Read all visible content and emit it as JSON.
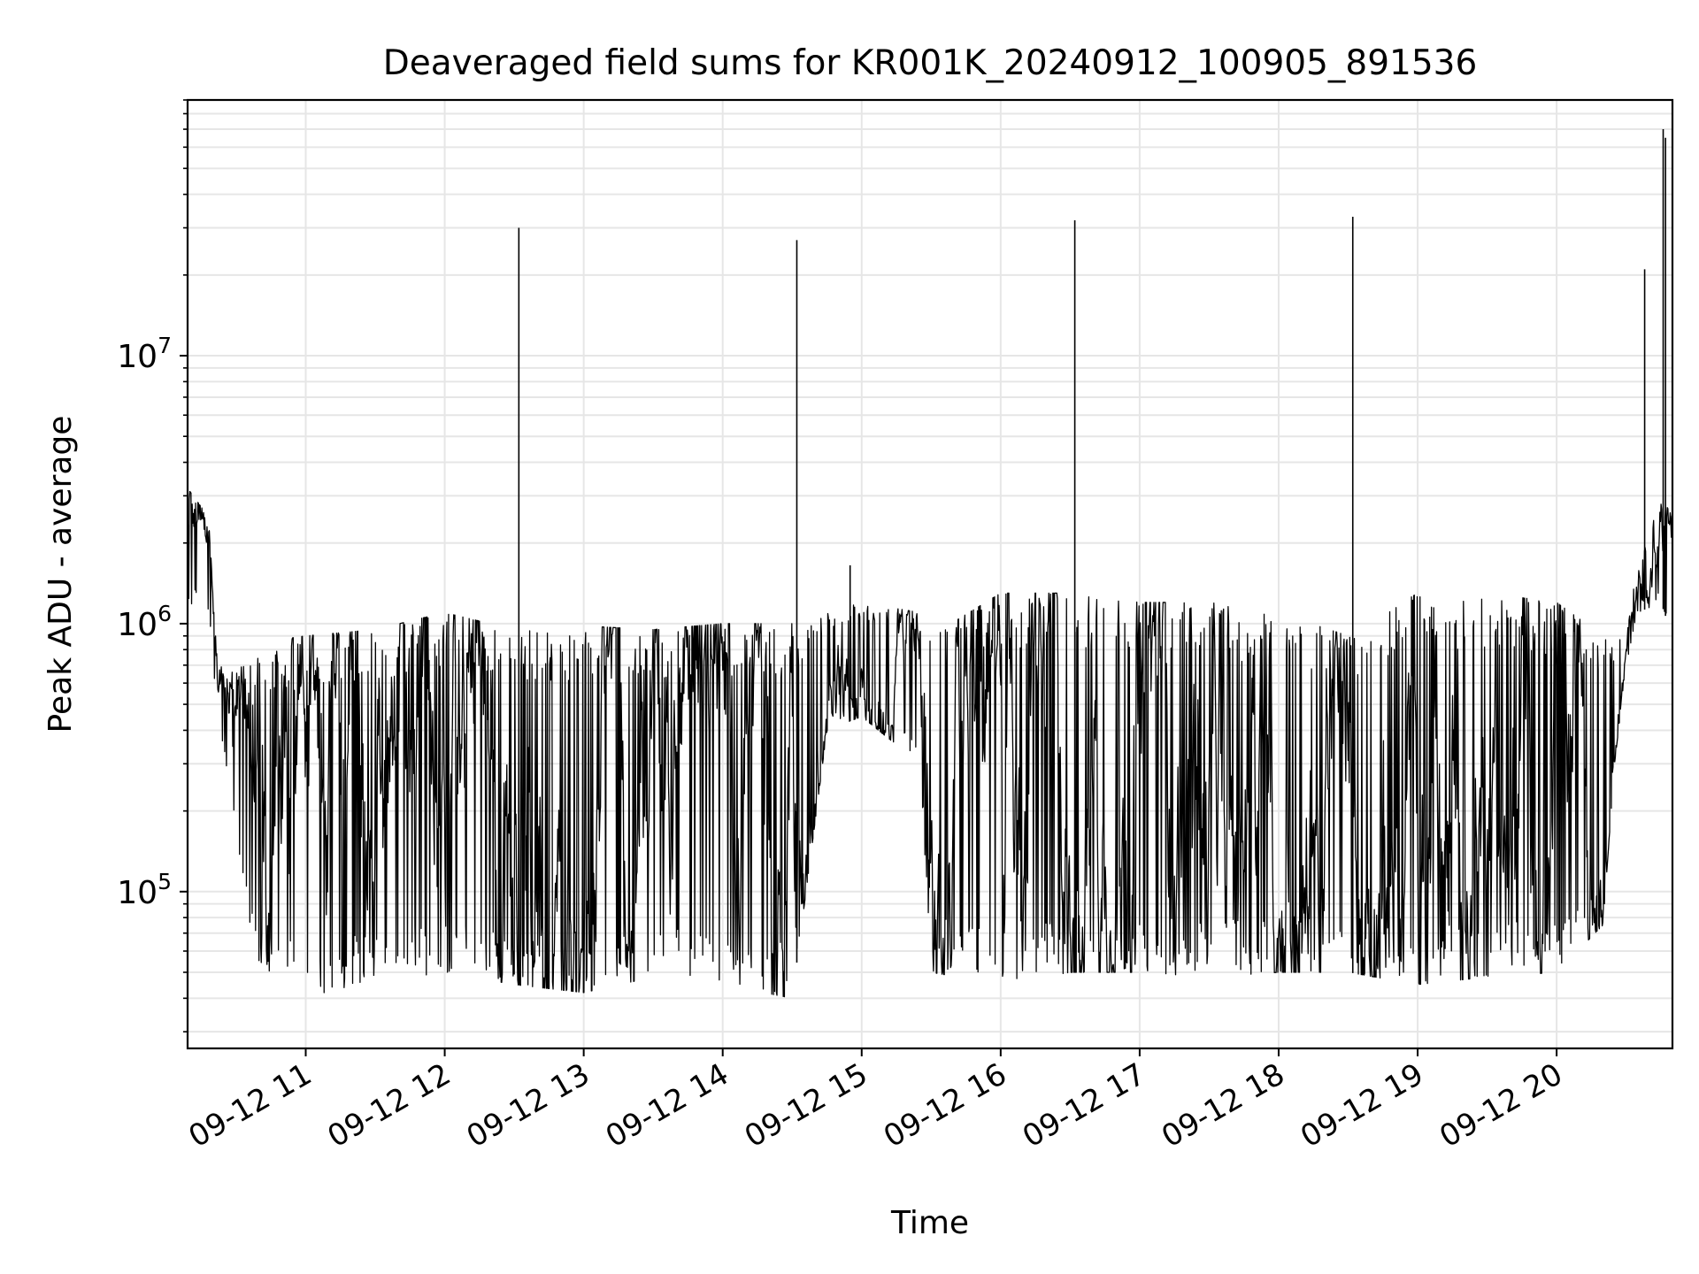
{
  "chart_data": {
    "type": "line",
    "title": "Deaveraged field sums for KR001K_20240912_100905_891536",
    "xlabel": "Time",
    "ylabel": "Peak ADU - average",
    "yscale": "log",
    "grid": true,
    "line_color": "#000000",
    "grid_color": "#e6e6e6",
    "xlim": [
      "2024-09-12 10:09",
      "2024-09-12 20:50"
    ],
    "ylim": [
      26000,
      90000000
    ],
    "x_ticks": [
      {
        "time": "2024-09-12 11:00",
        "label": "09-12 11"
      },
      {
        "time": "2024-09-12 12:00",
        "label": "09-12 12"
      },
      {
        "time": "2024-09-12 13:00",
        "label": "09-12 13"
      },
      {
        "time": "2024-09-12 14:00",
        "label": "09-12 14"
      },
      {
        "time": "2024-09-12 15:00",
        "label": "09-12 15"
      },
      {
        "time": "2024-09-12 16:00",
        "label": "09-12 16"
      },
      {
        "time": "2024-09-12 17:00",
        "label": "09-12 17"
      },
      {
        "time": "2024-09-12 18:00",
        "label": "09-12 18"
      },
      {
        "time": "2024-09-12 19:00",
        "label": "09-12 19"
      },
      {
        "time": "2024-09-12 20:00",
        "label": "09-12 20"
      }
    ],
    "y_ticks": [
      {
        "value": 100000,
        "base": "10",
        "exp": "5"
      },
      {
        "value": 1000000,
        "base": "10",
        "exp": "6"
      },
      {
        "value": 10000000,
        "base": "10",
        "exp": "7"
      }
    ],
    "profile": [
      {
        "time": "2024-09-12 10:09",
        "lo": 1200000,
        "hi": 3200000
      },
      {
        "time": "2024-09-12 10:18",
        "lo": 1100000,
        "hi": 2500000
      },
      {
        "time": "2024-09-12 10:22",
        "lo": 450000,
        "hi": 700000
      },
      {
        "time": "2024-09-12 10:30",
        "lo": 150000,
        "hi": 650000
      },
      {
        "time": "2024-09-12 10:40",
        "lo": 48000,
        "hi": 850000
      },
      {
        "time": "2024-09-12 11:00",
        "lo": 40000,
        "hi": 900000
      },
      {
        "time": "2024-09-12 11:30",
        "lo": 45000,
        "hi": 950000
      },
      {
        "time": "2024-09-12 12:00",
        "lo": 50000,
        "hi": 1100000
      },
      {
        "time": "2024-09-12 12:30",
        "lo": 45000,
        "hi": 950000
      },
      {
        "time": "2024-09-12 13:00",
        "lo": 42000,
        "hi": 980000
      },
      {
        "time": "2024-09-12 13:30",
        "lo": 48000,
        "hi": 950000
      },
      {
        "time": "2024-09-12 14:00",
        "lo": 45000,
        "hi": 1000000
      },
      {
        "time": "2024-09-12 14:30",
        "lo": 40000,
        "hi": 1000000
      },
      {
        "time": "2024-09-12 14:45",
        "lo": 400000,
        "hi": 1100000
      },
      {
        "time": "2024-09-12 15:00",
        "lo": 450000,
        "hi": 1200000
      },
      {
        "time": "2024-09-12 15:25",
        "lo": 300000,
        "hi": 1100000
      },
      {
        "time": "2024-09-12 15:30",
        "lo": 50000,
        "hi": 900000
      },
      {
        "time": "2024-09-12 16:00",
        "lo": 45000,
        "hi": 1300000
      },
      {
        "time": "2024-09-12 16:30",
        "lo": 50000,
        "hi": 1300000
      },
      {
        "time": "2024-09-12 17:00",
        "lo": 50000,
        "hi": 1200000
      },
      {
        "time": "2024-09-12 17:30",
        "lo": 48000,
        "hi": 1200000
      },
      {
        "time": "2024-09-12 18:00",
        "lo": 50000,
        "hi": 1100000
      },
      {
        "time": "2024-09-12 18:30",
        "lo": 50000,
        "hi": 900000
      },
      {
        "time": "2024-09-12 19:00",
        "lo": 45000,
        "hi": 1300000
      },
      {
        "time": "2024-09-12 19:30",
        "lo": 48000,
        "hi": 1300000
      },
      {
        "time": "2024-09-12 20:00",
        "lo": 50000,
        "hi": 1200000
      },
      {
        "time": "2024-09-12 20:20",
        "lo": 75000,
        "hi": 900000
      },
      {
        "time": "2024-09-12 20:25",
        "lo": 300000,
        "hi": 800000
      },
      {
        "time": "2024-09-12 20:30",
        "lo": 700000,
        "hi": 1000000
      },
      {
        "time": "2024-09-12 20:35",
        "lo": 1100000,
        "hi": 1600000
      },
      {
        "time": "2024-09-12 20:45",
        "lo": 1200000,
        "hi": 3000000
      },
      {
        "time": "2024-09-12 20:50",
        "lo": 900000,
        "hi": 2500000
      }
    ],
    "spikes": [
      {
        "time": "2024-09-12 12:32",
        "value": 30000000
      },
      {
        "time": "2024-09-12 14:32",
        "value": 27000000
      },
      {
        "time": "2024-09-12 14:55",
        "value": 1650000
      },
      {
        "time": "2024-09-12 16:32",
        "value": 32000000
      },
      {
        "time": "2024-09-12 18:32",
        "value": 33000000
      },
      {
        "time": "2024-09-12 20:38",
        "value": 21000000
      },
      {
        "time": "2024-09-12 20:46",
        "value": 70000000
      },
      {
        "time": "2024-09-12 20:47",
        "value": 65000000
      }
    ]
  }
}
